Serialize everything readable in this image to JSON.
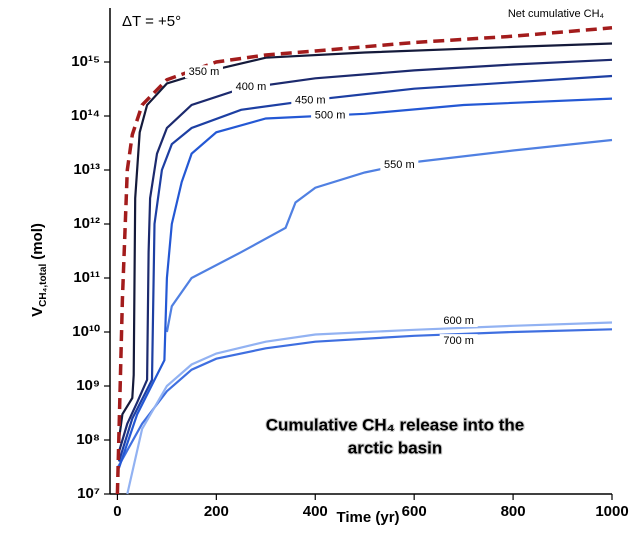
{
  "chart_data": {
    "type": "line",
    "x_label": "Time (yr)",
    "y_label": {
      "main": "V",
      "sub": "CH₄,total",
      "unit": "(mol)"
    },
    "annotations": [
      "ΔT = +5°"
    ],
    "caption_lines": [
      "Cumulative CH₄ release into the",
      "arctic basin"
    ],
    "xlim": [
      -15,
      1000
    ],
    "xticks": [
      0,
      200,
      400,
      600,
      800,
      1000
    ],
    "ylim": [
      10000000.0,
      1e+16
    ],
    "y_scale": "log",
    "yticks": [
      {
        "value": 10000000.0,
        "label": "10⁷"
      },
      {
        "value": 100000000.0,
        "label": "10⁸"
      },
      {
        "value": 1000000000.0,
        "label": "10⁹"
      },
      {
        "value": 10000000000.0,
        "label": "10¹⁰"
      },
      {
        "value": 100000000000.0,
        "label": "10¹¹"
      },
      {
        "value": 1000000000000.0,
        "label": "10¹²"
      },
      {
        "value": 10000000000000.0,
        "label": "10¹³"
      },
      {
        "value": 100000000000000.0,
        "label": "10¹⁴"
      },
      {
        "value": 1000000000000000.0,
        "label": "10¹⁵"
      }
    ],
    "series": [
      {
        "name": "Net cumulative CH₄",
        "color": "#a31c1c",
        "dashed": true,
        "x": [
          0,
          10,
          20,
          30,
          50,
          100,
          200,
          300,
          400,
          600,
          800,
          1000
        ],
        "values": [
          10000000.0,
          40000000000.0,
          10000000000000.0,
          45000000000000.0,
          160000000000000.0,
          470000000000000.0,
          1000000000000000.0,
          1350000000000000.0,
          1600000000000000.0,
          2300000000000000.0,
          3000000000000000.0,
          4300000000000000.0
        ]
      },
      {
        "name": "350 m",
        "color": "#141a3a",
        "x": [
          3,
          10,
          30,
          33,
          36,
          45,
          60,
          100,
          170,
          300,
          500,
          800,
          1000
        ],
        "values": [
          100000000.0,
          300000000.0,
          600000000.0,
          1600000000.0,
          3000000000000.0,
          50000000000000.0,
          160000000000000.0,
          400000000000000.0,
          630000000000000.0,
          1200000000000000.0,
          1500000000000000.0,
          1900000000000000.0,
          2200000000000000.0
        ]
      },
      {
        "name": "400 m",
        "color": "#1c2a6e",
        "x": [
          3,
          20,
          40,
          60,
          63,
          66,
          80,
          100,
          150,
          250,
          400,
          600,
          800,
          1000
        ],
        "values": [
          60000000.0,
          200000000.0,
          500000000.0,
          1300000000.0,
          300000000000.0,
          3000000000000.0,
          20000000000000.0,
          60000000000000.0,
          160000000000000.0,
          320000000000000.0,
          500000000000000.0,
          700000000000000.0,
          900000000000000.0,
          1100000000000000.0
        ]
      },
      {
        "name": "450 m",
        "color": "#1d3fa3",
        "x": [
          3,
          30,
          70,
          75,
          90,
          110,
          150,
          250,
          400,
          600,
          800,
          1000
        ],
        "values": [
          40000000.0,
          250000000.0,
          1300000000.0,
          1000000000000.0,
          10000000000000.0,
          30000000000000.0,
          60000000000000.0,
          130000000000000.0,
          200000000000000.0,
          320000000000000.0,
          420000000000000.0,
          550000000000000.0
        ]
      },
      {
        "name": "500 m",
        "color": "#2458d4",
        "x": [
          3,
          40,
          95,
          100,
          110,
          130,
          150,
          200,
          300,
          500,
          700,
          1000
        ],
        "values": [
          30000000.0,
          300000000.0,
          3000000000.0,
          100000000000.0,
          1000000000000.0,
          6000000000000.0,
          20000000000000.0,
          50000000000000.0,
          90000000000000.0,
          110000000000000.0,
          160000000000000.0,
          210000000000000.0
        ]
      },
      {
        "name": "550 m",
        "color": "#5080e2",
        "x": [
          100,
          110,
          150,
          250,
          340,
          360,
          400,
          500,
          600,
          800,
          1000
        ],
        "values": [
          10000000000.0,
          30000000000.0,
          100000000000.0,
          300000000000.0,
          850000000000.0,
          2500000000000.0,
          4700000000000.0,
          9000000000000.0,
          14000000000000.0,
          23000000000000.0,
          36000000000000.0
        ]
      },
      {
        "name": "600 m",
        "color": "#92b2f2",
        "x": [
          20,
          50,
          100,
          150,
          200,
          300,
          400,
          600,
          800,
          1000
        ],
        "values": [
          10000000.0,
          160000000.0,
          1000000000.0,
          2500000000.0,
          4000000000.0,
          6600000000.0,
          9000000000.0,
          11000000000.0,
          13000000000.0,
          15000000000.0
        ]
      },
      {
        "name": "700 m",
        "color": "#3f6fe0",
        "x": [
          0,
          50,
          100,
          150,
          200,
          300,
          400,
          600,
          800,
          1000
        ],
        "values": [
          30000000.0,
          200000000.0,
          800000000.0,
          2000000000.0,
          3200000000.0,
          5000000000.0,
          6600000000.0,
          8500000000.0,
          10000000000.0,
          11200000000.0
        ]
      }
    ]
  }
}
